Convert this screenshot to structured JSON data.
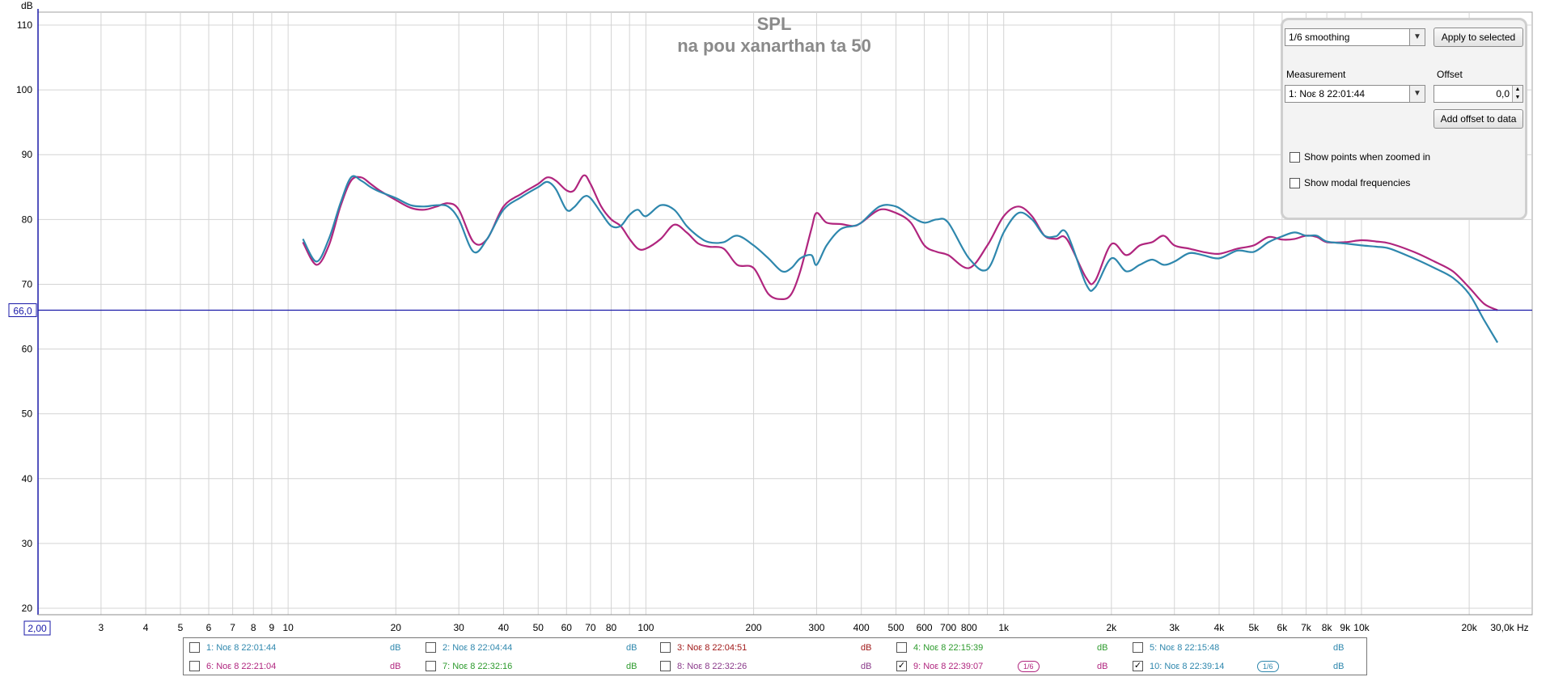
{
  "chart_data": {
    "type": "line",
    "title": "SPL",
    "subtitle": "na pou xanarthan ta 50",
    "ylabel": "dB",
    "xunit": "Hz",
    "xscale": "log",
    "xlim": [
      2,
      30000
    ],
    "ylim": [
      19,
      112
    ],
    "grid": true,
    "x_range_labels": {
      "min": "2,00",
      "max": "30,0k"
    },
    "y_ticks": [
      20,
      30,
      40,
      50,
      60,
      70,
      80,
      90,
      100,
      110
    ],
    "x_ticks": [
      {
        "v": 3,
        "label": "3"
      },
      {
        "v": 4,
        "label": "4"
      },
      {
        "v": 5,
        "label": "5"
      },
      {
        "v": 6,
        "label": "6"
      },
      {
        "v": 7,
        "label": "7"
      },
      {
        "v": 8,
        "label": "8"
      },
      {
        "v": 9,
        "label": "9"
      },
      {
        "v": 10,
        "label": "10"
      },
      {
        "v": 20,
        "label": "20"
      },
      {
        "v": 30,
        "label": "30"
      },
      {
        "v": 40,
        "label": "40"
      },
      {
        "v": 50,
        "label": "50"
      },
      {
        "v": 60,
        "label": "60"
      },
      {
        "v": 70,
        "label": "70"
      },
      {
        "v": 80,
        "label": "80"
      },
      {
        "v": 100,
        "label": "100"
      },
      {
        "v": 200,
        "label": "200"
      },
      {
        "v": 300,
        "label": "300"
      },
      {
        "v": 400,
        "label": "400"
      },
      {
        "v": 500,
        "label": "500"
      },
      {
        "v": 600,
        "label": "600"
      },
      {
        "v": 700,
        "label": "700"
      },
      {
        "v": 800,
        "label": "800"
      },
      {
        "v": 1000,
        "label": "1k"
      },
      {
        "v": 2000,
        "label": "2k"
      },
      {
        "v": 3000,
        "label": "3k"
      },
      {
        "v": 4000,
        "label": "4k"
      },
      {
        "v": 5000,
        "label": "5k"
      },
      {
        "v": 6000,
        "label": "6k"
      },
      {
        "v": 7000,
        "label": "7k"
      },
      {
        "v": 8000,
        "label": "8k"
      },
      {
        "v": 9000,
        "label": "9k"
      },
      {
        "v": 10000,
        "label": "10k"
      },
      {
        "v": 20000,
        "label": "20k"
      }
    ],
    "reference_line": {
      "value": 66.0,
      "label": "66,0",
      "color": "#1a1aa8"
    },
    "series": [
      {
        "color": "#b0257e",
        "x": [
          11,
          12,
          13,
          14,
          15,
          16,
          17,
          18,
          20,
          22,
          24,
          26,
          28,
          30,
          33,
          36,
          40,
          45,
          50,
          53,
          56,
          60,
          63,
          67,
          70,
          75,
          80,
          85,
          90,
          95,
          100,
          110,
          120,
          130,
          140,
          150,
          165,
          180,
          200,
          220,
          240,
          255,
          270,
          290,
          300,
          320,
          350,
          380,
          400,
          450,
          500,
          550,
          600,
          650,
          700,
          800,
          900,
          1000,
          1100,
          1200,
          1300,
          1400,
          1500,
          1700,
          1800,
          2000,
          2200,
          2400,
          2600,
          2800,
          3000,
          3300,
          3600,
          4000,
          4500,
          5000,
          5500,
          6000,
          6500,
          7000,
          7500,
          8000,
          9000,
          10000,
          11000,
          12000,
          14000,
          16000,
          18000,
          20000,
          22000,
          24000
        ],
        "y": [
          76.5,
          73,
          76,
          82,
          86,
          86.5,
          85.5,
          84.5,
          83,
          81.8,
          81.5,
          82,
          82.5,
          81.5,
          76.5,
          77,
          82,
          84,
          85.5,
          86.5,
          86,
          84.5,
          84.5,
          86.8,
          85.5,
          82,
          80,
          79,
          77,
          75.5,
          75.5,
          77,
          79.2,
          78,
          76.3,
          75.8,
          75.5,
          73,
          72.5,
          68.5,
          67.7,
          68.5,
          72,
          78.5,
          81,
          79.5,
          79.3,
          79,
          79.5,
          81.5,
          81,
          79.5,
          76,
          75,
          74.5,
          72.5,
          76,
          80.5,
          82,
          80.5,
          77.5,
          77,
          77,
          71,
          70.5,
          76.2,
          74.5,
          76,
          76.5,
          77.5,
          76,
          75.5,
          75,
          74.7,
          75.5,
          76,
          77.3,
          76.9,
          77,
          77.5,
          77.3,
          76.5,
          76.5,
          76.8,
          76.6,
          76.3,
          75,
          73.5,
          72,
          69.5,
          67,
          66
        ]
      },
      {
        "color": "#2e87ad",
        "x": [
          11,
          12,
          13,
          14,
          15,
          16,
          17,
          18,
          20,
          22,
          24,
          26,
          28,
          30,
          33,
          36,
          40,
          45,
          50,
          53,
          56,
          60,
          63,
          67,
          70,
          75,
          80,
          85,
          90,
          95,
          100,
          110,
          120,
          130,
          140,
          150,
          165,
          180,
          200,
          220,
          240,
          255,
          270,
          290,
          300,
          320,
          350,
          380,
          400,
          450,
          500,
          550,
          600,
          650,
          700,
          800,
          900,
          1000,
          1100,
          1200,
          1300,
          1400,
          1500,
          1700,
          1800,
          2000,
          2200,
          2400,
          2600,
          2800,
          3000,
          3300,
          3600,
          4000,
          4500,
          5000,
          5500,
          6000,
          6500,
          7000,
          7500,
          8000,
          9000,
          10000,
          11000,
          12000,
          14000,
          16000,
          18000,
          20000,
          22000,
          24000
        ],
        "y": [
          77,
          73.5,
          77,
          82.5,
          86.5,
          86,
          85,
          84.3,
          83.3,
          82.2,
          82,
          82.2,
          82,
          80,
          75,
          77,
          81.5,
          83.5,
          85,
          85.8,
          84.7,
          81.5,
          81.9,
          83.5,
          83.3,
          81,
          79,
          79,
          80.7,
          81.5,
          80.5,
          82.2,
          81.5,
          79,
          77.4,
          76.5,
          76.5,
          77.5,
          76,
          74,
          72,
          72.5,
          74,
          74.5,
          73,
          76,
          78.5,
          79,
          79.5,
          82,
          82,
          80.5,
          79.5,
          80,
          79.5,
          74,
          72.3,
          78,
          81,
          80,
          77.5,
          77.4,
          77.9,
          70,
          69.5,
          74,
          72,
          73,
          73.8,
          73,
          73.5,
          74.8,
          74.5,
          74,
          75.2,
          75,
          76.5,
          77.4,
          78,
          77.5,
          77.5,
          76.6,
          76.3,
          76,
          75.8,
          75.5,
          74,
          72.5,
          71,
          68.5,
          64.5,
          61
        ]
      }
    ]
  },
  "controls": {
    "smoothing_value": "1/6 smoothing",
    "apply_button": "Apply to selected",
    "measurement_label": "Measurement",
    "measurement_value": "1: Νοε 8 22:01:44",
    "offset_label": "Offset",
    "offset_value": "0,0",
    "add_offset_button": "Add offset to data",
    "show_points_label": "Show points when zoomed in",
    "show_modal_label": "Show modal frequencies"
  },
  "legend": [
    {
      "name": "1: Νοε 8 22:01:44",
      "unit": "dB",
      "checked": false,
      "color": "#2e87ad",
      "badge": ""
    },
    {
      "name": "2: Νοε 8 22:04:44",
      "unit": "dB",
      "checked": false,
      "color": "#2e87ad",
      "badge": ""
    },
    {
      "name": "3: Νοε 8 22:04:51",
      "unit": "dB",
      "checked": false,
      "color": "#a01818",
      "badge": ""
    },
    {
      "name": "4: Νοε 8 22:15:39",
      "unit": "dB",
      "checked": false,
      "color": "#2c9a2c",
      "badge": ""
    },
    {
      "name": "5: Νοε 8 22:15:48",
      "unit": "dB",
      "checked": false,
      "color": "#2e87ad",
      "badge": ""
    },
    {
      "name": "6: Νοε 8 22:21:04",
      "unit": "dB",
      "checked": false,
      "color": "#b0257e",
      "badge": ""
    },
    {
      "name": "7: Νοε 8 22:32:16",
      "unit": "dB",
      "checked": false,
      "color": "#2c9a2c",
      "badge": ""
    },
    {
      "name": "8: Νοε 8 22:32:26",
      "unit": "dB",
      "checked": false,
      "color": "#8a3a8a",
      "badge": ""
    },
    {
      "name": "9: Νοε 8 22:39:07",
      "unit": "dB",
      "checked": true,
      "color": "#b0257e",
      "badge": "1/6"
    },
    {
      "name": "10: Νοε 8 22:39:14",
      "unit": "dB",
      "checked": true,
      "color": "#2e87ad",
      "badge": "1/6"
    }
  ]
}
